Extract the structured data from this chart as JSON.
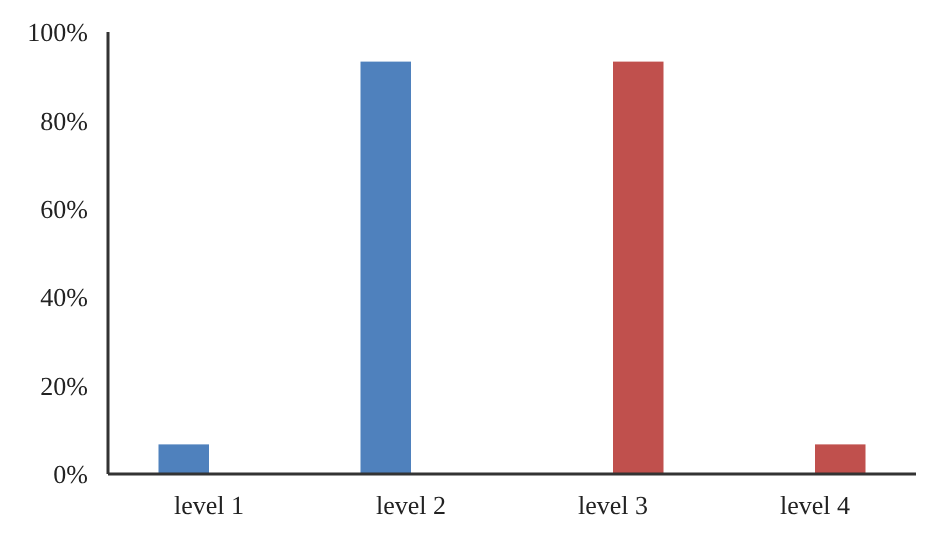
{
  "chart_data": {
    "type": "bar",
    "categories": [
      "level 1",
      "level 2",
      "level 3",
      "level 4"
    ],
    "series": [
      {
        "color": "#4f81bd",
        "values": [
          6.7,
          93.3,
          null,
          null
        ]
      },
      {
        "color": "#c0504d",
        "values": [
          null,
          null,
          93.3,
          6.7
        ]
      }
    ],
    "ylim": [
      0,
      100
    ],
    "yticks": [
      {
        "value": 0,
        "label": "0%"
      },
      {
        "value": 20,
        "label": "20%"
      },
      {
        "value": 40,
        "label": "40%"
      },
      {
        "value": 60,
        "label": "60%"
      },
      {
        "value": 80,
        "label": "80%"
      },
      {
        "value": 100,
        "label": "100%"
      }
    ],
    "grid": false
  }
}
